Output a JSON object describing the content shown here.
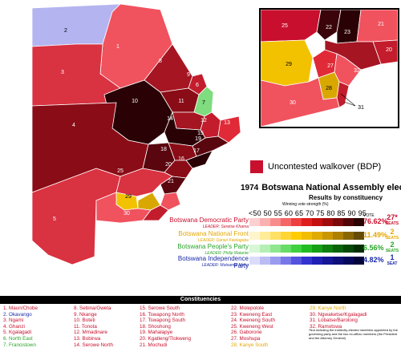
{
  "map": {
    "region_labels": [
      "1",
      "2",
      "3",
      "4",
      "5",
      "6",
      "7",
      "8",
      "9",
      "10",
      "11",
      "12",
      "13",
      "14",
      "15",
      "16",
      "17",
      "18",
      "19",
      "20",
      "21",
      "25",
      "29",
      "30"
    ],
    "inset_labels": [
      "20",
      "21",
      "22",
      "23",
      "25",
      "27",
      "28",
      "29",
      "30",
      "31",
      "32"
    ]
  },
  "uncontested": {
    "label": "Uncontested walkover (BDP)",
    "color": "#c8102e"
  },
  "election": {
    "year": "1974",
    "title": "Botswana National Assembly election",
    "subtitle": "Results by constituency",
    "scale_header": "Winning vote strength (%)",
    "scale": "<50 50 55 60 65 70 75 80 85 90 95",
    "vote_header": "VOTE"
  },
  "parties": [
    {
      "name": "Botswana Democratic Party",
      "leader": "LEADER: Seretse Khama",
      "vote": "76.62%",
      "seats": "27",
      "seats_note": "SEATS",
      "color": "#c8102e",
      "swatches": [
        "#fdd0d0",
        "#fbb0b0",
        "#f88c8c",
        "#f56666",
        "#ee3f3f",
        "#e01e1e",
        "#c41010",
        "#a00c0c",
        "#7a0a0a",
        "#500606",
        "#2a0202"
      ]
    },
    {
      "name": "Botswana National Front",
      "leader": "LEADER: Daniel Kwelagobe",
      "vote": "11.49%",
      "seats": "2",
      "seats_note": "SEATS",
      "color": "#e6a800",
      "swatches": [
        "#fff5cc",
        "#ffec99",
        "#ffe066",
        "#ffd633",
        "#ffcc00",
        "#f2bd00",
        "#e0ab00",
        "#c99600",
        "#ad8000",
        "#8a6600",
        "#664c00"
      ]
    },
    {
      "name": "Botswana People's Party",
      "leader": "LEADER: Philip Matante",
      "vote": "6.56%",
      "seats": "2",
      "seats_note": "SEATS",
      "color": "#2aa52a",
      "swatches": [
        "#d7f7d7",
        "#b5efb5",
        "#8fe68f",
        "#66dd66",
        "#3fd13f",
        "#22bd22",
        "#16a016",
        "#0f800f",
        "#0a640a",
        "#064806",
        "#032e03"
      ]
    },
    {
      "name": "Botswana Independence Party",
      "leader": "LEADER: Motsamai Mpho",
      "vote": "4.82%",
      "seats": "1",
      "seats_note": "SEAT",
      "color": "#1a2aa8",
      "swatches": [
        "#dcdcfa",
        "#bcbcf5",
        "#9a9aef",
        "#7777e8",
        "#5353de",
        "#3333cf",
        "#2020b5",
        "#161696",
        "#0f0f78",
        "#08085a",
        "#04043c"
      ]
    }
  ],
  "constituencies": {
    "header": "Constituencies",
    "columns": [
      [
        {
          "t": "1. Maun/Chobe",
          "c": "#c8102e"
        },
        {
          "t": "2. Okavango",
          "c": "#1a2aa8"
        },
        {
          "t": "3. Ngami",
          "c": "#c8102e"
        },
        {
          "t": "4. Ghanzi",
          "c": "#c8102e"
        },
        {
          "t": "5. Kgalagadi",
          "c": "#c8102e"
        },
        {
          "t": "6. North East",
          "c": "#2aa52a"
        },
        {
          "t": "7. Francistown",
          "c": "#2aa52a"
        }
      ],
      [
        {
          "t": "8. Sebina/Gweta",
          "c": "#c8102e"
        },
        {
          "t": "9. Nkange",
          "c": "#c8102e"
        },
        {
          "t": "10. Boteti",
          "c": "#c8102e"
        },
        {
          "t": "11. Tonota",
          "c": "#c8102e"
        },
        {
          "t": "12. Mmadinare",
          "c": "#c8102e"
        },
        {
          "t": "13. Bobirwa",
          "c": "#c8102e"
        },
        {
          "t": "14. Serowe North",
          "c": "#c8102e"
        }
      ],
      [
        {
          "t": "15. Serowe South",
          "c": "#c8102e"
        },
        {
          "t": "16. Tswapong North",
          "c": "#c8102e"
        },
        {
          "t": "17. Tswapong South",
          "c": "#c8102e"
        },
        {
          "t": "18. Shoshong",
          "c": "#c8102e"
        },
        {
          "t": "19. Mahalapye",
          "c": "#c8102e"
        },
        {
          "t": "20. Kgatleng/Tlokweng",
          "c": "#c8102e"
        },
        {
          "t": "21. Mochudi",
          "c": "#c8102e"
        }
      ],
      [
        {
          "t": "22. Molepolole",
          "c": "#c8102e"
        },
        {
          "t": "23. Kweneng East",
          "c": "#c8102e"
        },
        {
          "t": "24. Kweneng South",
          "c": "#c8102e"
        },
        {
          "t": "25. Kweneng West",
          "c": "#c8102e"
        },
        {
          "t": "26. Gaborone",
          "c": "#c8102e"
        },
        {
          "t": "27. Moshupa",
          "c": "#c8102e"
        },
        {
          "t": "28. Kanye South",
          "c": "#e6a800"
        }
      ],
      [
        {
          "t": "29. Kanye North",
          "c": "#e6a800"
        },
        {
          "t": "30. Ngwaketse/Kgalagadi",
          "c": "#c8102e"
        },
        {
          "t": "31. Lobatse/Barolong",
          "c": "#c8102e"
        },
        {
          "t": "32. Ramotswa",
          "c": "#c8102e"
        }
      ]
    ],
    "note": "*Not including the indirectly-elected members appointed by the governing party and the two ex-officio members (the President and the Attorney General)."
  }
}
